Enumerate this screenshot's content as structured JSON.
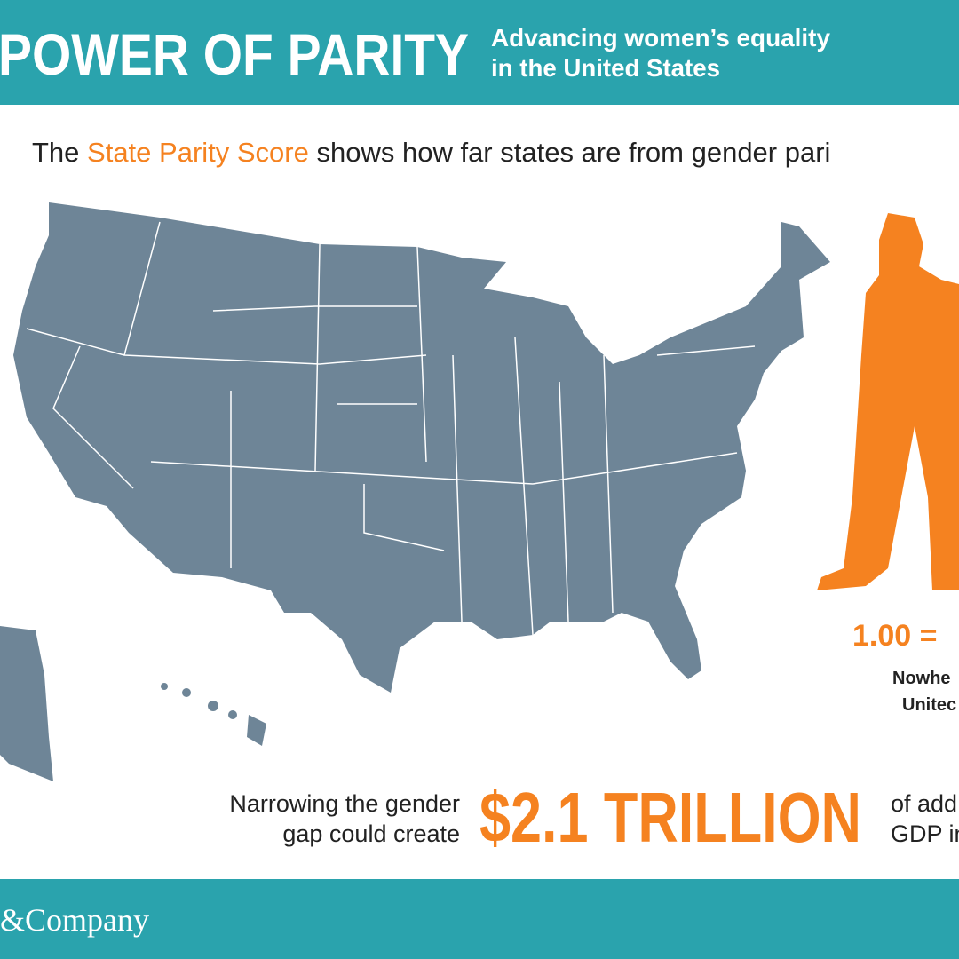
{
  "header": {
    "title": "POWER OF PARITY",
    "subtitle_lines": [
      "Advancing women’s equality",
      "in the United States"
    ]
  },
  "intro": {
    "before": "The ",
    "highlight": "State Parity Score",
    "after": " shows how far states are from gender pari"
  },
  "legend": {
    "score": "1.00 =",
    "lines": [
      "Nowhe",
      "Unitec"
    ]
  },
  "callout": {
    "left_lines": [
      "Narrowing the gender",
      "gap could create"
    ],
    "amount": "$2.1 TRILLION",
    "right_lines": [
      "of add",
      "GDP in"
    ]
  },
  "footer": {
    "brand": "&Company"
  }
}
